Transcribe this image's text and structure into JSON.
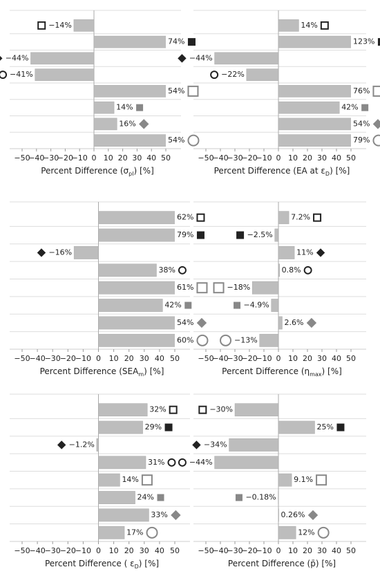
{
  "chart_data": [
    {
      "type": "bar",
      "orientation": "horizontal",
      "color": "#bdbdbd",
      "grid": true,
      "values": [
        -14,
        74,
        -44,
        -41,
        54,
        14,
        16,
        54
      ],
      "value_labels": [
        "−14%",
        "74%",
        "−44%",
        "−41%",
        "54%",
        "14%",
        "16%",
        "54%"
      ],
      "xlim": [
        -50,
        50
      ],
      "xticks": [
        {
          "value": -50,
          "label": "−50"
        },
        {
          "value": -40,
          "label": "−40"
        },
        {
          "value": -30,
          "label": "−30"
        },
        {
          "value": -20,
          "label": "−20"
        },
        {
          "value": -10,
          "label": "−10"
        },
        0,
        10,
        20,
        30,
        40,
        50
      ],
      "xlabel": [
        "Percent Difference (σ",
        "pl",
        ") [%]"
      ]
    },
    {
      "type": "bar",
      "orientation": "horizontal",
      "color": "#bdbdbd",
      "grid": true,
      "values": [
        14,
        123,
        -44,
        -22,
        76,
        42,
        54,
        79
      ],
      "value_labels": [
        "14%",
        "123%",
        "−44%",
        "−22%",
        "76%",
        "42%",
        "54%",
        "79%"
      ],
      "xlim": [
        -50,
        50
      ],
      "xticks": [
        {
          "value": -50,
          "label": "−50"
        },
        {
          "value": -40,
          "label": "−40"
        },
        {
          "value": -30,
          "label": "−30"
        },
        {
          "value": -20,
          "label": "−20"
        },
        {
          "value": -10,
          "label": "−10"
        },
        0,
        10,
        20,
        30,
        40,
        50
      ],
      "xlabel": [
        "Percent Difference (EA at ε",
        "D",
        ") [%]"
      ]
    },
    {
      "type": "bar",
      "orientation": "horizontal",
      "color": "#bdbdbd",
      "grid": true,
      "values": [
        62,
        79,
        -16,
        38,
        61,
        42,
        54,
        60
      ],
      "value_labels": [
        "62%",
        "79%",
        "−16%",
        "38%",
        "61%",
        "42%",
        "54%",
        "60%"
      ],
      "xlim": [
        -50,
        50
      ],
      "xticks": [
        {
          "value": -50,
          "label": "−50"
        },
        {
          "value": -40,
          "label": "−40"
        },
        {
          "value": -30,
          "label": "−30"
        },
        {
          "value": -20,
          "label": "−20"
        },
        {
          "value": -10,
          "label": "−10"
        },
        0,
        10,
        20,
        30,
        40,
        50
      ],
      "xlabel": [
        "Percent Difference (SEA",
        "m",
        ") [%]"
      ]
    },
    {
      "type": "bar",
      "orientation": "horizontal",
      "color": "#bdbdbd",
      "grid": true,
      "values": [
        7.2,
        -2.5,
        11,
        0.8,
        -18,
        -4.9,
        2.6,
        -13
      ],
      "value_labels": [
        "7.2%",
        "−2.5%",
        "11%",
        "0.8%",
        "−18%",
        "−4.9%",
        "2.6%",
        "−13%"
      ],
      "xlim": [
        -50,
        50
      ],
      "xticks": [
        {
          "value": -50,
          "label": "−50"
        },
        {
          "value": -40,
          "label": "−40"
        },
        {
          "value": -30,
          "label": "−30"
        },
        {
          "value": -20,
          "label": "−20"
        },
        {
          "value": -10,
          "label": "−10"
        },
        0,
        10,
        20,
        30,
        40,
        50
      ],
      "xlabel": [
        "Percent Difference (η",
        "max",
        ") [%]"
      ]
    },
    {
      "type": "bar",
      "orientation": "horizontal",
      "color": "#bdbdbd",
      "grid": true,
      "values": [
        32,
        29,
        -1.2,
        31,
        14,
        24,
        33,
        17
      ],
      "value_labels": [
        "32%",
        "29%",
        "−1.2%",
        "31%",
        "14%",
        "24%",
        "33%",
        "17%"
      ],
      "xlim": [
        -50,
        50
      ],
      "xticks": [
        {
          "value": -50,
          "label": "−50"
        },
        {
          "value": -40,
          "label": "−40"
        },
        {
          "value": -30,
          "label": "−30"
        },
        {
          "value": -20,
          "label": "−20"
        },
        {
          "value": -10,
          "label": "−10"
        },
        0,
        10,
        20,
        30,
        40,
        50
      ],
      "xlabel": [
        "Percent Difference ( ε",
        "D",
        ") [%]"
      ]
    },
    {
      "type": "bar",
      "orientation": "horizontal",
      "color": "#bdbdbd",
      "grid": true,
      "values": [
        -30,
        25,
        -34,
        -44,
        9.1,
        -0.18,
        0.26,
        12
      ],
      "value_labels": [
        "−30%",
        "25%",
        "−34%",
        "−44%",
        "9.1%",
        "−0.18%",
        "0.26%",
        "12%"
      ],
      "xlim": [
        -50,
        50
      ],
      "xticks": [
        {
          "value": -50,
          "label": "−50"
        },
        {
          "value": -40,
          "label": "−40"
        },
        {
          "value": -30,
          "label": "−30"
        },
        {
          "value": -20,
          "label": "−20"
        },
        {
          "value": -10,
          "label": "−10"
        },
        0,
        10,
        20,
        30,
        40,
        50
      ],
      "xlabel": [
        "Percent Difference (p̄",
        "",
        ") [%]"
      ]
    }
  ]
}
